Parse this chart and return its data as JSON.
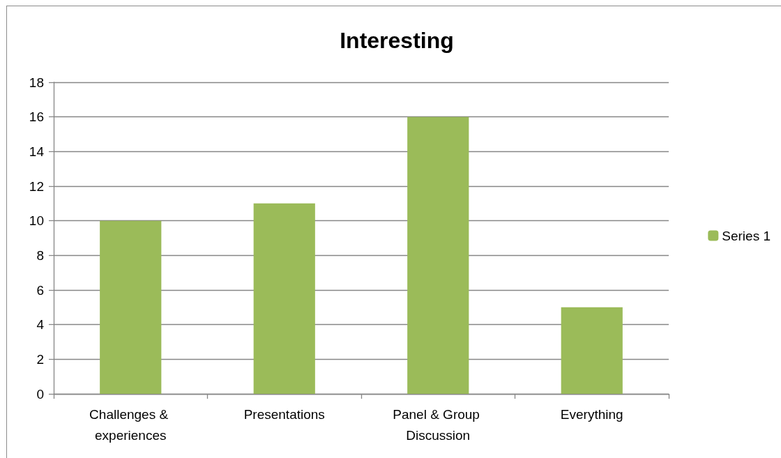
{
  "chart_data": {
    "type": "bar",
    "title": "Interesting",
    "categories": [
      "Challenges & experiences",
      "Presentations",
      "Panel & Group Discussion",
      "Everything"
    ],
    "series": [
      {
        "name": "Series 1",
        "color": "#9bbb59",
        "values": [
          10,
          11,
          16,
          5
        ]
      }
    ],
    "ylim": [
      0,
      18
    ],
    "yticks": [
      0,
      2,
      4,
      6,
      8,
      10,
      12,
      14,
      16,
      18
    ],
    "grid": "y",
    "legend": "right"
  }
}
